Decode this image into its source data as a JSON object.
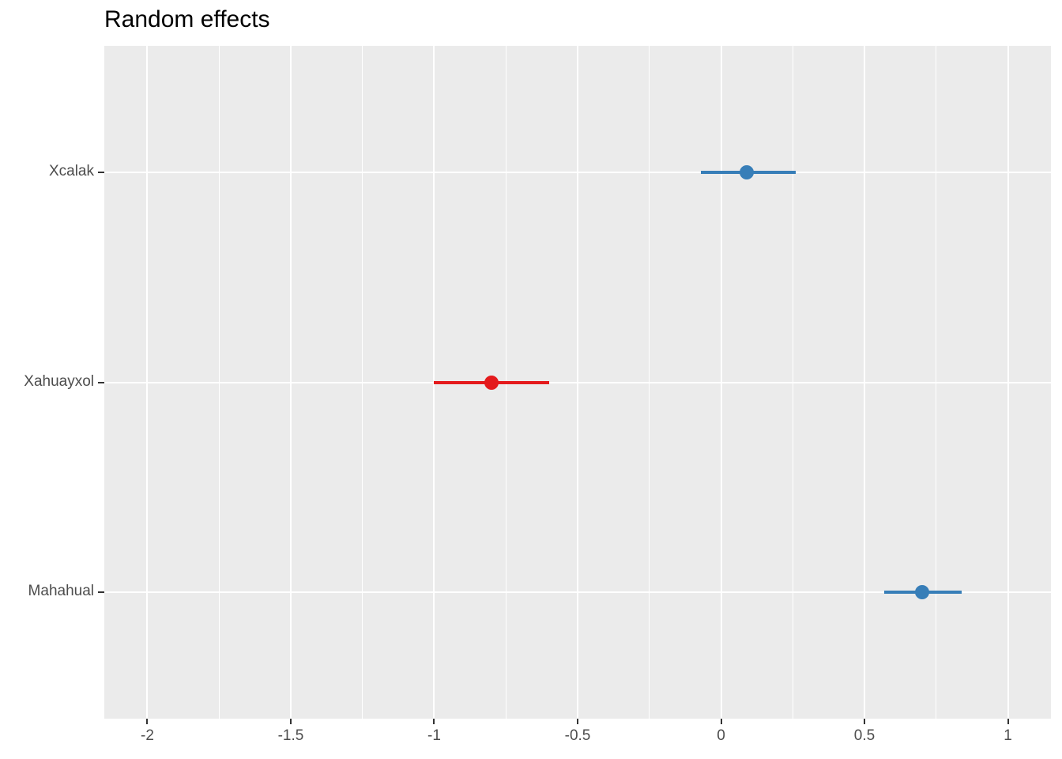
{
  "page_title": "Random effects",
  "chart_data": {
    "type": "pointrange",
    "title": "Random effects",
    "orientation": "horizontal",
    "xlabel": "",
    "ylabel": "",
    "categories": [
      "Xcalak",
      "Xahuayxol",
      "Mahahual"
    ],
    "points": [
      {
        "label": "Xcalak",
        "estimate": 0.09,
        "ci_low": -0.07,
        "ci_high": 0.26,
        "color": "#377EB8"
      },
      {
        "label": "Xahuayxol",
        "estimate": -0.8,
        "ci_low": -1.0,
        "ci_high": -0.6,
        "color": "#E41A1C"
      },
      {
        "label": "Mahahual",
        "estimate": 0.7,
        "ci_low": 0.57,
        "ci_high": 0.84,
        "color": "#377EB8"
      }
    ],
    "xlim": [
      -2.15,
      1.15
    ],
    "x_major_ticks": [
      -2,
      -1.5,
      -1,
      -0.5,
      0,
      0.5,
      1
    ],
    "x_tick_labels": [
      "-2",
      "-1.5",
      "-1",
      "-0.5",
      "0",
      "0.5",
      "1"
    ],
    "x_minor_ticks": [
      -1.75,
      -1.25,
      -0.75,
      -0.25,
      0.25,
      0.75
    ],
    "grid": true,
    "legend": false,
    "colors": {
      "positive": "#377EB8",
      "negative": "#E41A1C",
      "panel_background": "#EBEBEB",
      "gridline": "#FFFFFF",
      "axis_text": "#4D4D4D",
      "tick_mark": "#333333",
      "title_text": "#000000"
    }
  }
}
